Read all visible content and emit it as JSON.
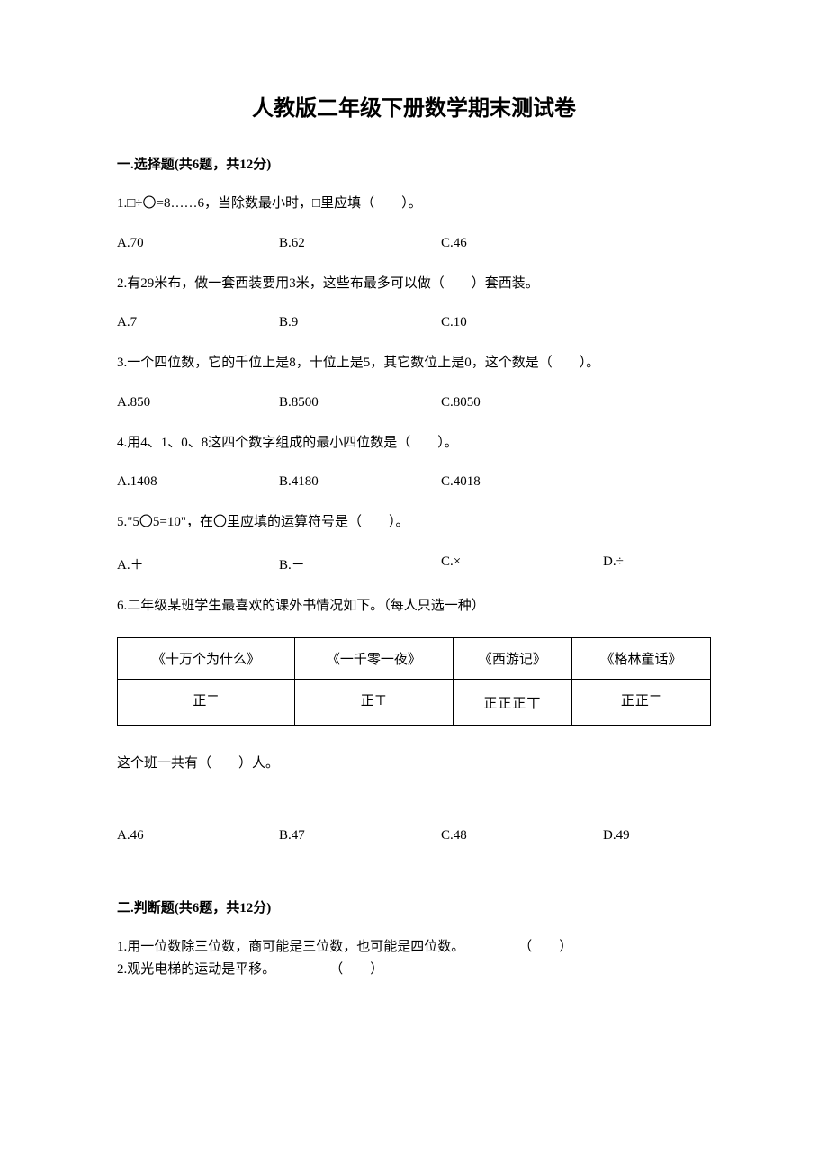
{
  "title": "人教版二年级下册数学期末测试卷",
  "section1": {
    "header": "一.选择题(共6题，共12分)",
    "q1": {
      "text": "1.□÷〇=8……6，当除数最小时，□里应填（　　）。",
      "optA": "A.70",
      "optB": "B.62",
      "optC": "C.46"
    },
    "q2": {
      "text": "2.有29米布，做一套西装要用3米，这些布最多可以做（　　）套西装。",
      "optA": "A.7",
      "optB": "B.9",
      "optC": "C.10"
    },
    "q3": {
      "text": "3.一个四位数，它的千位上是8，十位上是5，其它数位上是0，这个数是（　　）。",
      "optA": "A.850",
      "optB": "B.8500",
      "optC": "C.8050"
    },
    "q4": {
      "text": "4.用4、1、0、8这四个数字组成的最小四位数是（　　）。",
      "optA": "A.1408",
      "optB": "B.4180",
      "optC": "C.4018"
    },
    "q5": {
      "text": "5.\"5〇5=10\"，在〇里应填的运算符号是（　　）。",
      "optA": "A.＋",
      "optB": "B.－",
      "optC": "C.×",
      "optD": "D.÷"
    },
    "q6": {
      "text": "6.二年级某班学生最喜欢的课外书情况如下。（每人只选一种）",
      "table": {
        "headers": [
          "《十万个为什么》",
          "《一千零一夜》",
          "《西游记》",
          "《格林童话》"
        ],
        "tallies": [
          "正𝍲",
          "正𝍳",
          "正正正丅",
          "正正𝍲"
        ]
      },
      "subtext": "这个班一共有（　　）人。",
      "optA": "A.46",
      "optB": "B.47",
      "optC": "C.48",
      "optD": "D.49"
    }
  },
  "section2": {
    "header": "二.判断题(共6题，共12分)",
    "q1": {
      "text": "1.用一位数除三位数，商可能是三位数，也可能是四位数。",
      "paren": "（　　）"
    },
    "q2": {
      "text": "2.观光电梯的运动是平移。",
      "paren": "（　　）"
    }
  },
  "colors": {
    "text": "#000000",
    "background": "#ffffff",
    "border": "#000000"
  }
}
